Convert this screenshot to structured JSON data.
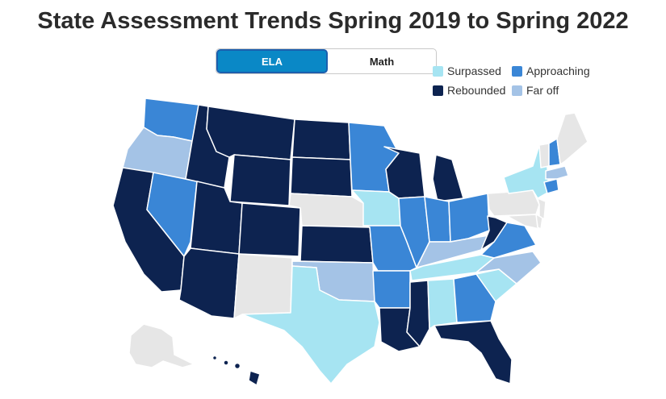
{
  "title": "State Assessment Trends Spring 2019 to Spring 2022",
  "tabs": [
    {
      "label": "ELA",
      "active": true
    },
    {
      "label": "Math",
      "active": false
    }
  ],
  "legend": [
    {
      "label": "Surpassed",
      "color": "#a6e4f2"
    },
    {
      "label": "Approaching",
      "color": "#3a86d6"
    },
    {
      "label": "Rebounded",
      "color": "#0d2350"
    },
    {
      "label": "Far off",
      "color": "#a4c3e6"
    }
  ],
  "colors": {
    "surpassed": "#a6e4f2",
    "approaching": "#3a86d6",
    "rebounded": "#0d2350",
    "far_off": "#a4c3e6",
    "no_data": "#e6e6e6",
    "border": "#ffffff"
  },
  "states": {
    "WA": "approaching",
    "OR": "far_off",
    "CA": "rebounded",
    "NV": "approaching",
    "ID": "rebounded",
    "MT": "rebounded",
    "WY": "rebounded",
    "UT": "rebounded",
    "AZ": "rebounded",
    "CO": "rebounded",
    "NM": "no_data",
    "ND": "rebounded",
    "SD": "rebounded",
    "NE": "no_data",
    "KS": "rebounded",
    "OK": "far_off",
    "TX": "surpassed",
    "MN": "approaching",
    "IA": "surpassed",
    "MO": "approaching",
    "AR": "approaching",
    "LA": "rebounded",
    "WI": "rebounded",
    "IL": "approaching",
    "MS": "rebounded",
    "MI": "rebounded",
    "IN": "approaching",
    "KY": "far_off",
    "TN": "surpassed",
    "AL": "surpassed",
    "OH": "approaching",
    "WV": "rebounded",
    "GA": "approaching",
    "FL": "rebounded",
    "SC": "surpassed",
    "NC": "far_off",
    "VA": "approaching",
    "PA": "no_data",
    "NY": "surpassed",
    "VT": "no_data",
    "NH": "approaching",
    "ME": "no_data",
    "MA": "far_off",
    "CT": "approaching",
    "NJ": "no_data",
    "MD": "no_data",
    "DE": "no_data",
    "AK": "no_data",
    "HI": "rebounded"
  }
}
